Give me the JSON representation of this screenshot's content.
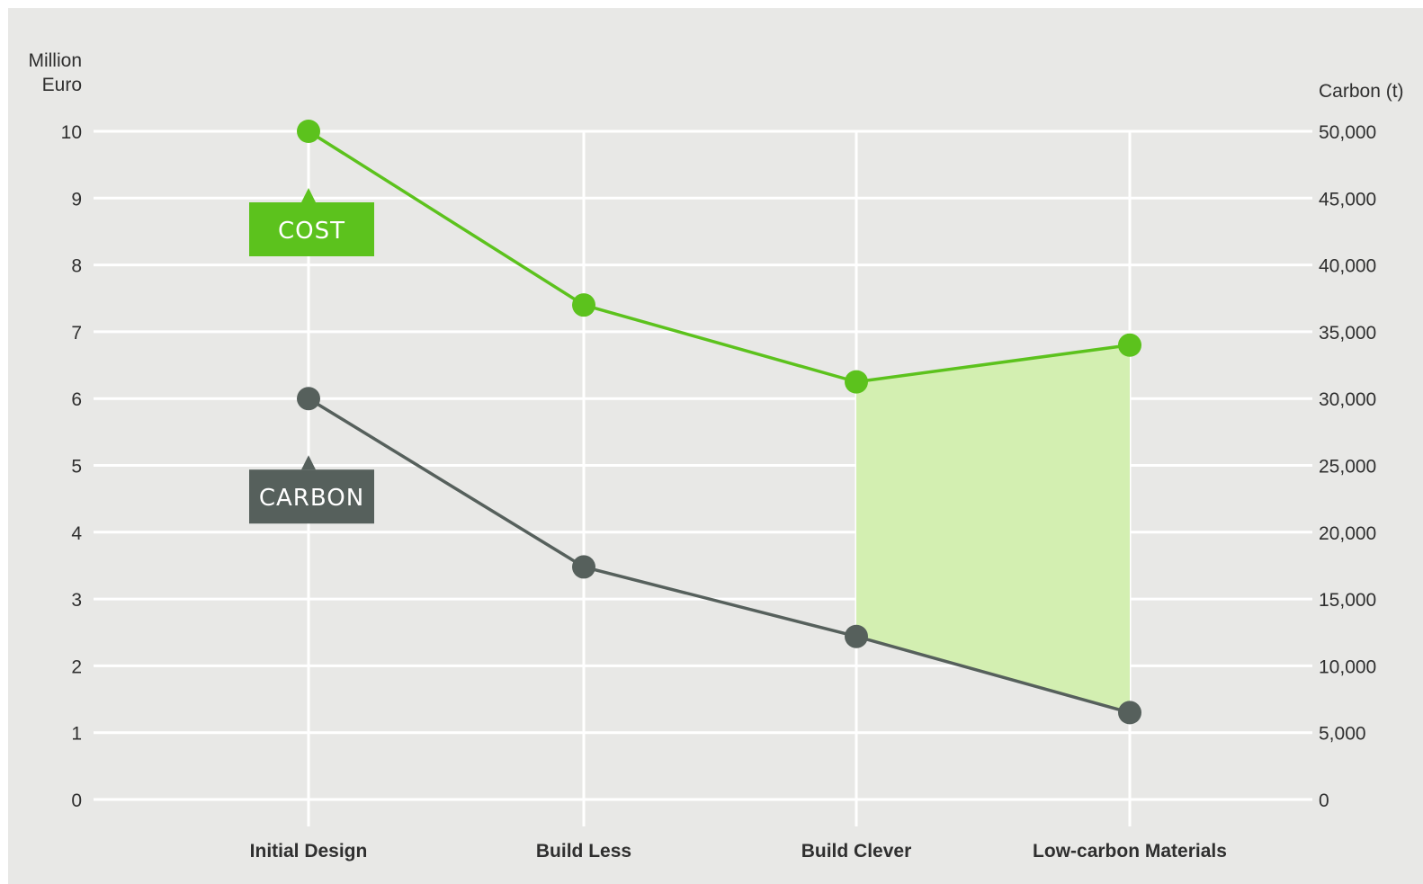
{
  "chart_data": {
    "type": "line",
    "categories": [
      "Initial Design",
      "Build Less",
      "Build Clever",
      "Low-carbon Materials"
    ],
    "y_left": {
      "label_lines": [
        "Million",
        "Euro"
      ],
      "min": 0,
      "max": 10,
      "ticks": [
        "0",
        "1",
        "2",
        "3",
        "4",
        "5",
        "6",
        "7",
        "8",
        "9",
        "10"
      ]
    },
    "y_right": {
      "label": "Carbon (t)",
      "min": 0,
      "max": 50000,
      "ticks": [
        "0",
        "5,000",
        "10,000",
        "15,000",
        "20,000",
        "25,000",
        "30,000",
        "35,000",
        "40,000",
        "45,000",
        "50,000"
      ]
    },
    "series": [
      {
        "name": "COST",
        "axis": "left",
        "color": "#5cc21d",
        "values": [
          10.0,
          7.4,
          6.25,
          6.8
        ]
      },
      {
        "name": "CARBON",
        "axis": "right",
        "color": "#56605c",
        "values": [
          30000,
          17400,
          12200,
          6500
        ]
      }
    ],
    "shaded_region": {
      "from_category": "Build Clever",
      "to_category": "Low-carbon Materials",
      "color": "#d3efb1"
    },
    "grid": true
  }
}
